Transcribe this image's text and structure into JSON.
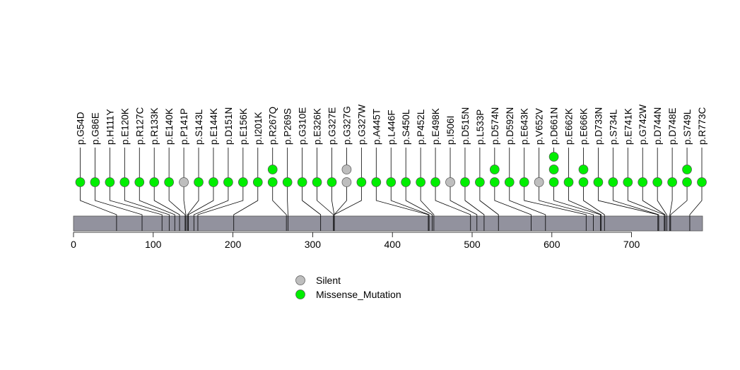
{
  "chart_data": {
    "type": "lollipop",
    "title": "",
    "xlabel": "",
    "ylabel": "",
    "protein_length": 789,
    "xlim": [
      0,
      789
    ],
    "x_ticks": [
      0,
      100,
      200,
      300,
      400,
      500,
      600,
      700
    ],
    "legend": [
      {
        "label": "Silent",
        "color": "#bebebe"
      },
      {
        "label": "Missense_Mutation",
        "color": "#00ee00"
      }
    ],
    "mutations": [
      {
        "label": "p.G54D",
        "position": 54,
        "count": 1,
        "type": "Missense_Mutation"
      },
      {
        "label": "p.G86E",
        "position": 86,
        "count": 1,
        "type": "Missense_Mutation"
      },
      {
        "label": "p.H111Y",
        "position": 111,
        "count": 1,
        "type": "Missense_Mutation"
      },
      {
        "label": "p.E120K",
        "position": 120,
        "count": 1,
        "type": "Missense_Mutation"
      },
      {
        "label": "p.R127C",
        "position": 127,
        "count": 1,
        "type": "Missense_Mutation"
      },
      {
        "label": "p.R133K",
        "position": 133,
        "count": 1,
        "type": "Missense_Mutation"
      },
      {
        "label": "p.E140K",
        "position": 140,
        "count": 1,
        "type": "Missense_Mutation"
      },
      {
        "label": "p.P141P",
        "position": 141,
        "count": 1,
        "type": "Silent"
      },
      {
        "label": "p.S143L",
        "position": 143,
        "count": 1,
        "type": "Missense_Mutation"
      },
      {
        "label": "p.E144K",
        "position": 144,
        "count": 1,
        "type": "Missense_Mutation"
      },
      {
        "label": "p.D151N",
        "position": 151,
        "count": 1,
        "type": "Missense_Mutation"
      },
      {
        "label": "p.E156K",
        "position": 156,
        "count": 1,
        "type": "Missense_Mutation"
      },
      {
        "label": "p.I201K",
        "position": 201,
        "count": 1,
        "type": "Missense_Mutation"
      },
      {
        "label": "p.R267Q",
        "position": 267,
        "count": 2,
        "type": "Missense_Mutation"
      },
      {
        "label": "p.P269S",
        "position": 269,
        "count": 1,
        "type": "Missense_Mutation"
      },
      {
        "label": "p.G310E",
        "position": 310,
        "count": 1,
        "type": "Missense_Mutation"
      },
      {
        "label": "p.E326K",
        "position": 326,
        "count": 1,
        "type": "Missense_Mutation"
      },
      {
        "label": "p.G327E",
        "position": 327,
        "count": 1,
        "type": "Missense_Mutation"
      },
      {
        "label": "p.G327G",
        "position": 327,
        "count": 2,
        "type": "Silent"
      },
      {
        "label": "p.G327W",
        "position": 327,
        "count": 1,
        "type": "Missense_Mutation"
      },
      {
        "label": "p.A445T",
        "position": 445,
        "count": 1,
        "type": "Missense_Mutation"
      },
      {
        "label": "p.L446F",
        "position": 446,
        "count": 1,
        "type": "Missense_Mutation"
      },
      {
        "label": "p.S450L",
        "position": 450,
        "count": 1,
        "type": "Missense_Mutation"
      },
      {
        "label": "p.P452L",
        "position": 452,
        "count": 1,
        "type": "Missense_Mutation"
      },
      {
        "label": "p.E498K",
        "position": 498,
        "count": 1,
        "type": "Missense_Mutation"
      },
      {
        "label": "p.I506I",
        "position": 506,
        "count": 1,
        "type": "Silent"
      },
      {
        "label": "p.D515N",
        "position": 515,
        "count": 1,
        "type": "Missense_Mutation"
      },
      {
        "label": "p.L533P",
        "position": 533,
        "count": 1,
        "type": "Missense_Mutation"
      },
      {
        "label": "p.D574N",
        "position": 574,
        "count": 2,
        "type": "Missense_Mutation"
      },
      {
        "label": "p.D592N",
        "position": 592,
        "count": 1,
        "type": "Missense_Mutation"
      },
      {
        "label": "p.E643K",
        "position": 643,
        "count": 1,
        "type": "Missense_Mutation"
      },
      {
        "label": "p.V652V",
        "position": 652,
        "count": 1,
        "type": "Silent"
      },
      {
        "label": "p.D661N",
        "position": 661,
        "count": 3,
        "type": "Missense_Mutation"
      },
      {
        "label": "p.E662K",
        "position": 662,
        "count": 1,
        "type": "Missense_Mutation"
      },
      {
        "label": "p.E666K",
        "position": 666,
        "count": 2,
        "type": "Missense_Mutation"
      },
      {
        "label": "p.D733N",
        "position": 733,
        "count": 1,
        "type": "Missense_Mutation"
      },
      {
        "label": "p.S734L",
        "position": 734,
        "count": 1,
        "type": "Missense_Mutation"
      },
      {
        "label": "p.E741K",
        "position": 741,
        "count": 1,
        "type": "Missense_Mutation"
      },
      {
        "label": "p.G742W",
        "position": 742,
        "count": 1,
        "type": "Missense_Mutation"
      },
      {
        "label": "p.D744N",
        "position": 744,
        "count": 1,
        "type": "Missense_Mutation"
      },
      {
        "label": "p.D748E",
        "position": 748,
        "count": 1,
        "type": "Missense_Mutation"
      },
      {
        "label": "p.S749L",
        "position": 749,
        "count": 2,
        "type": "Missense_Mutation"
      },
      {
        "label": "p.R773C",
        "position": 773,
        "count": 1,
        "type": "Missense_Mutation"
      }
    ]
  }
}
